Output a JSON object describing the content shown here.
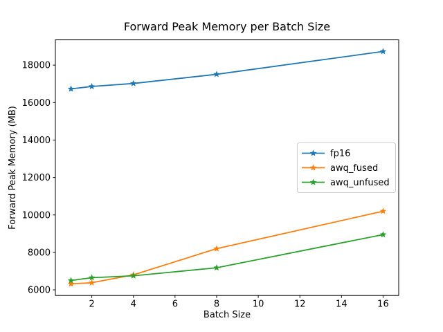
{
  "chart_data": {
    "type": "line",
    "title": "Forward Peak Memory per Batch Size",
    "xlabel": "Batch Size",
    "ylabel": "Forward Peak Memory (MB)",
    "x": [
      1,
      2,
      4,
      8,
      16
    ],
    "series": [
      {
        "name": "fp16",
        "color": "#1f77b4",
        "marker": "star",
        "values": [
          16730,
          16860,
          17020,
          17510,
          18730
        ]
      },
      {
        "name": "awq_fused",
        "color": "#ff7f0e",
        "marker": "star",
        "values": [
          6320,
          6380,
          6800,
          8200,
          10200
        ]
      },
      {
        "name": "awq_unfused",
        "color": "#2ca02c",
        "marker": "star",
        "values": [
          6500,
          6650,
          6750,
          7180,
          8950
        ]
      }
    ],
    "x_ticks": [
      2,
      4,
      6,
      8,
      10,
      12,
      14,
      16
    ],
    "y_ticks": [
      6000,
      8000,
      10000,
      12000,
      14000,
      16000,
      18000
    ],
    "xlim": [
      0.25,
      16.75
    ],
    "ylim": [
      5700,
      19350
    ],
    "grid": false,
    "legend_position": "center-right",
    "background_color": "#ffffff",
    "spine_color": "#000000",
    "legend_border_color": "#cccccc"
  }
}
